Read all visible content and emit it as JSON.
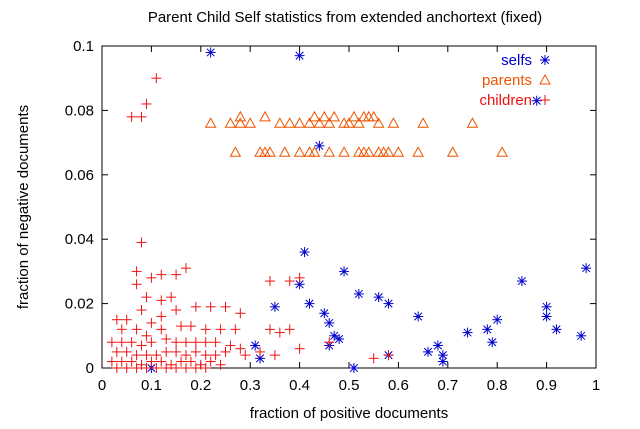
{
  "chart_data": {
    "type": "scatter",
    "title": "Parent Child Self statistics from extended anchortext (fixed)",
    "xlabel": "fraction of positive documents",
    "ylabel": "fraction of negative documents",
    "xlim": [
      0,
      1
    ],
    "ylim": [
      0,
      0.1
    ],
    "xticks": [
      "0",
      "0.1",
      "0.2",
      "0.3",
      "0.4",
      "0.5",
      "0.6",
      "0.7",
      "0.8",
      "0.9",
      "1"
    ],
    "yticks": [
      "0",
      "0.02",
      "0.04",
      "0.06",
      "0.08",
      "0.1"
    ],
    "grid": false,
    "legend_position": "top-right",
    "series": [
      {
        "name": "selfs",
        "color": "#0000cc",
        "marker": "star",
        "points": [
          [
            0.22,
            0.098
          ],
          [
            0.4,
            0.097
          ],
          [
            0.44,
            0.069
          ],
          [
            0.41,
            0.036
          ],
          [
            0.4,
            0.026
          ],
          [
            0.42,
            0.02
          ],
          [
            0.45,
            0.017
          ],
          [
            0.46,
            0.014
          ],
          [
            0.49,
            0.03
          ],
          [
            0.52,
            0.023
          ],
          [
            0.47,
            0.01
          ],
          [
            0.48,
            0.009
          ],
          [
            0.46,
            0.007
          ],
          [
            0.51,
            0.0
          ],
          [
            0.56,
            0.022
          ],
          [
            0.58,
            0.02
          ],
          [
            0.58,
            0.004
          ],
          [
            0.64,
            0.016
          ],
          [
            0.66,
            0.005
          ],
          [
            0.68,
            0.007
          ],
          [
            0.69,
            0.004
          ],
          [
            0.69,
            0.002
          ],
          [
            0.74,
            0.011
          ],
          [
            0.78,
            0.012
          ],
          [
            0.79,
            0.008
          ],
          [
            0.8,
            0.015
          ],
          [
            0.85,
            0.027
          ],
          [
            0.88,
            0.083
          ],
          [
            0.9,
            0.019
          ],
          [
            0.9,
            0.016
          ],
          [
            0.92,
            0.012
          ],
          [
            0.97,
            0.01
          ],
          [
            0.98,
            0.031
          ],
          [
            0.31,
            0.007
          ],
          [
            0.32,
            0.003
          ],
          [
            0.35,
            0.019
          ],
          [
            0.1,
            0.0
          ]
        ]
      },
      {
        "name": "parents",
        "color": "#ee5500",
        "marker": "triangle",
        "points": [
          [
            0.22,
            0.076
          ],
          [
            0.26,
            0.076
          ],
          [
            0.28,
            0.076
          ],
          [
            0.28,
            0.078
          ],
          [
            0.3,
            0.076
          ],
          [
            0.33,
            0.078
          ],
          [
            0.36,
            0.076
          ],
          [
            0.38,
            0.076
          ],
          [
            0.4,
            0.076
          ],
          [
            0.42,
            0.076
          ],
          [
            0.43,
            0.078
          ],
          [
            0.44,
            0.076
          ],
          [
            0.45,
            0.078
          ],
          [
            0.46,
            0.076
          ],
          [
            0.47,
            0.078
          ],
          [
            0.49,
            0.076
          ],
          [
            0.5,
            0.076
          ],
          [
            0.51,
            0.078
          ],
          [
            0.52,
            0.076
          ],
          [
            0.53,
            0.078
          ],
          [
            0.54,
            0.078
          ],
          [
            0.55,
            0.078
          ],
          [
            0.56,
            0.076
          ],
          [
            0.59,
            0.076
          ],
          [
            0.65,
            0.076
          ],
          [
            0.75,
            0.076
          ],
          [
            0.27,
            0.067
          ],
          [
            0.32,
            0.067
          ],
          [
            0.33,
            0.067
          ],
          [
            0.34,
            0.067
          ],
          [
            0.37,
            0.067
          ],
          [
            0.4,
            0.067
          ],
          [
            0.42,
            0.067
          ],
          [
            0.43,
            0.067
          ],
          [
            0.46,
            0.067
          ],
          [
            0.49,
            0.067
          ],
          [
            0.52,
            0.067
          ],
          [
            0.53,
            0.067
          ],
          [
            0.54,
            0.067
          ],
          [
            0.56,
            0.067
          ],
          [
            0.57,
            0.067
          ],
          [
            0.58,
            0.067
          ],
          [
            0.6,
            0.067
          ],
          [
            0.64,
            0.067
          ],
          [
            0.71,
            0.067
          ],
          [
            0.81,
            0.067
          ]
        ]
      },
      {
        "name": "children",
        "color": "#ee1111",
        "marker": "plus",
        "points": [
          [
            0.06,
            0.078
          ],
          [
            0.08,
            0.078
          ],
          [
            0.09,
            0.082
          ],
          [
            0.11,
            0.09
          ],
          [
            0.08,
            0.039
          ],
          [
            0.07,
            0.03
          ],
          [
            0.07,
            0.026
          ],
          [
            0.1,
            0.028
          ],
          [
            0.12,
            0.029
          ],
          [
            0.15,
            0.029
          ],
          [
            0.17,
            0.031
          ],
          [
            0.09,
            0.022
          ],
          [
            0.12,
            0.021
          ],
          [
            0.14,
            0.022
          ],
          [
            0.08,
            0.018
          ],
          [
            0.12,
            0.016
          ],
          [
            0.03,
            0.015
          ],
          [
            0.05,
            0.015
          ],
          [
            0.1,
            0.014
          ],
          [
            0.15,
            0.018
          ],
          [
            0.19,
            0.019
          ],
          [
            0.22,
            0.019
          ],
          [
            0.25,
            0.019
          ],
          [
            0.28,
            0.017
          ],
          [
            0.34,
            0.027
          ],
          [
            0.38,
            0.027
          ],
          [
            0.04,
            0.012
          ],
          [
            0.07,
            0.012
          ],
          [
            0.09,
            0.01
          ],
          [
            0.12,
            0.012
          ],
          [
            0.16,
            0.013
          ],
          [
            0.18,
            0.013
          ],
          [
            0.21,
            0.012
          ],
          [
            0.24,
            0.012
          ],
          [
            0.27,
            0.012
          ],
          [
            0.34,
            0.012
          ],
          [
            0.36,
            0.011
          ],
          [
            0.38,
            0.012
          ],
          [
            0.4,
            0.028
          ],
          [
            0.02,
            0.008
          ],
          [
            0.04,
            0.008
          ],
          [
            0.06,
            0.008
          ],
          [
            0.08,
            0.007
          ],
          [
            0.1,
            0.008
          ],
          [
            0.13,
            0.009
          ],
          [
            0.15,
            0.008
          ],
          [
            0.17,
            0.008
          ],
          [
            0.19,
            0.008
          ],
          [
            0.21,
            0.008
          ],
          [
            0.23,
            0.008
          ],
          [
            0.26,
            0.007
          ],
          [
            0.28,
            0.006
          ],
          [
            0.03,
            0.005
          ],
          [
            0.05,
            0.005
          ],
          [
            0.07,
            0.004
          ],
          [
            0.09,
            0.004
          ],
          [
            0.11,
            0.004
          ],
          [
            0.13,
            0.005
          ],
          [
            0.15,
            0.005
          ],
          [
            0.17,
            0.004
          ],
          [
            0.19,
            0.005
          ],
          [
            0.21,
            0.004
          ],
          [
            0.23,
            0.004
          ],
          [
            0.25,
            0.005
          ],
          [
            0.29,
            0.004
          ],
          [
            0.32,
            0.005
          ],
          [
            0.35,
            0.004
          ],
          [
            0.4,
            0.006
          ],
          [
            0.02,
            0.002
          ],
          [
            0.04,
            0.002
          ],
          [
            0.06,
            0.002
          ],
          [
            0.08,
            0.001
          ],
          [
            0.1,
            0.002
          ],
          [
            0.12,
            0.002
          ],
          [
            0.14,
            0.001
          ],
          [
            0.16,
            0.002
          ],
          [
            0.18,
            0.002
          ],
          [
            0.2,
            0.001
          ],
          [
            0.22,
            0.002
          ],
          [
            0.24,
            0.001
          ],
          [
            0.03,
            0.0
          ],
          [
            0.05,
            0.0
          ],
          [
            0.07,
            0.0
          ],
          [
            0.09,
            0.0
          ],
          [
            0.11,
            0.0
          ],
          [
            0.13,
            0.0
          ],
          [
            0.15,
            0.0
          ],
          [
            0.17,
            0.0
          ],
          [
            0.19,
            0.0
          ],
          [
            0.21,
            0.0
          ],
          [
            0.46,
            0.008
          ],
          [
            0.55,
            0.003
          ],
          [
            0.58,
            0.004
          ]
        ]
      }
    ]
  }
}
